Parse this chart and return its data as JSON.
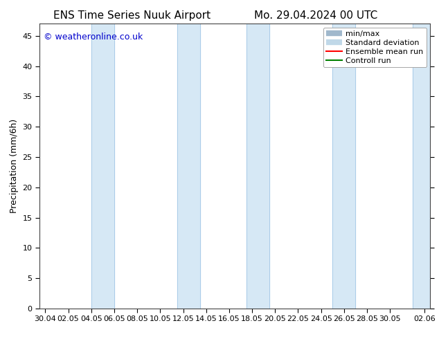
{
  "title_left": "ENS Time Series Nuuk Airport",
  "title_right": "Mo. 29.04.2024 00 UTC",
  "ylabel": "Precipitation (mm/6h)",
  "ylim": [
    0,
    47
  ],
  "yticks": [
    0,
    5,
    10,
    15,
    20,
    25,
    30,
    35,
    40,
    45
  ],
  "xtick_labels": [
    "30.04",
    "02.05",
    "04.05",
    "06.05",
    "08.05",
    "10.05",
    "12.05",
    "14.05",
    "16.05",
    "18.05",
    "20.05",
    "22.05",
    "24.05",
    "26.05",
    "28.05",
    "30.05",
    "02.06"
  ],
  "xtick_positions": [
    0,
    2,
    4,
    6,
    8,
    10,
    12,
    14,
    16,
    18,
    20,
    22,
    24,
    26,
    28,
    30,
    33
  ],
  "xlim_left": -0.5,
  "xlim_right": 33.5,
  "shaded_bands": [
    [
      4,
      6
    ],
    [
      11.5,
      13.5
    ],
    [
      17.5,
      19.5
    ],
    [
      25,
      27
    ],
    [
      32,
      33.5
    ]
  ],
  "band_color": "#d6e8f5",
  "band_edge_color": "#aacce8",
  "background_color": "#ffffff",
  "watermark_text": "© weatheronline.co.uk",
  "watermark_color": "#0000cc",
  "legend_entries": [
    "min/max",
    "Standard deviation",
    "Ensemble mean run",
    "Controll run"
  ],
  "legend_minmax_color": "#a0b8cc",
  "legend_std_color": "#c0d8e8",
  "legend_ensemble_color": "#ff0000",
  "legend_control_color": "#008000",
  "title_fontsize": 11,
  "axis_label_fontsize": 9,
  "tick_fontsize": 8,
  "legend_fontsize": 8,
  "watermark_fontsize": 9
}
